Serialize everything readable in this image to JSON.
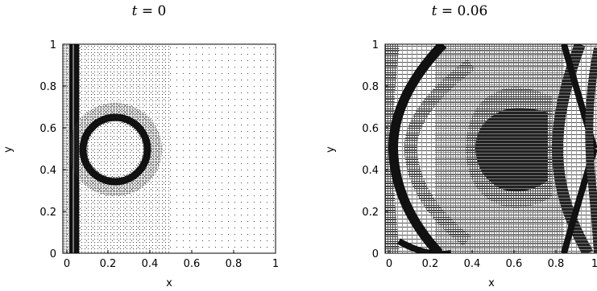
{
  "figure": {
    "panels": [
      {
        "title_var": "t",
        "title_eq": " = ",
        "title_val": "0",
        "xlabel": "x",
        "ylabel": "y",
        "xticks": [
          "0",
          "0.2",
          "0.4",
          "0.6",
          "0.8",
          "1"
        ],
        "yticks": [
          "0",
          "0.2",
          "0.4",
          "0.6",
          "0.8",
          "1"
        ]
      },
      {
        "title_var": "t",
        "title_eq": " = ",
        "title_val": "0.06",
        "xlabel": "x",
        "ylabel": "y",
        "xticks": [
          "0",
          "0.2",
          "0.4",
          "0.6",
          "0.8",
          "1"
        ],
        "yticks": [
          "0",
          "0.2",
          "0.4",
          "0.6",
          "0.8",
          "1"
        ]
      }
    ]
  }
}
